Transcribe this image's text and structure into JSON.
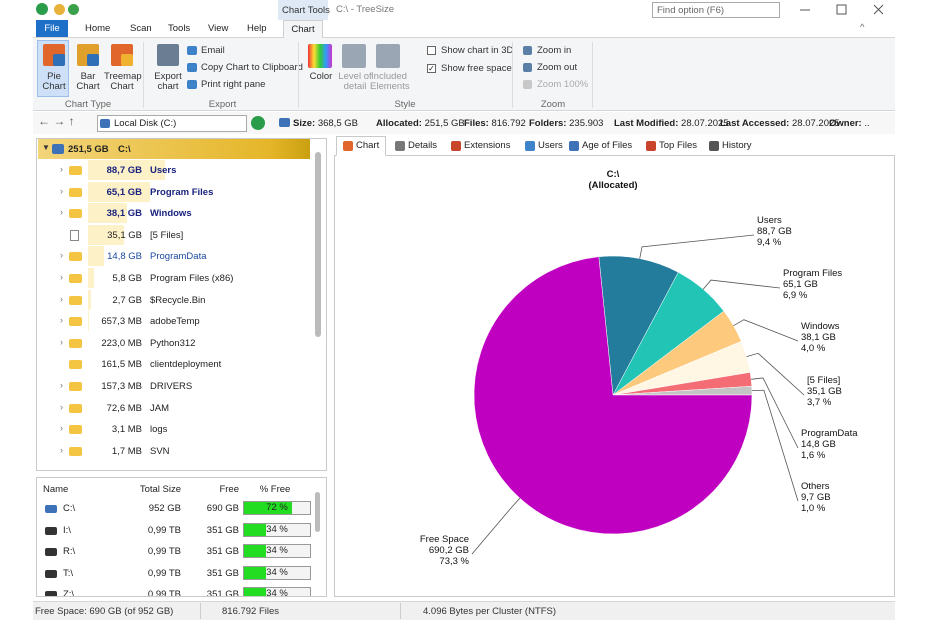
{
  "window": {
    "context_tab": "Chart Tools",
    "title": "C:\\ - TreeSize",
    "search_placeholder": "Find option (F6)"
  },
  "menu": [
    "File",
    "Home",
    "Scan",
    "Tools",
    "View",
    "Help",
    "Chart"
  ],
  "ribbon": {
    "chart_type": {
      "label": "Chart Type",
      "buttons": [
        "Pie Chart",
        "Bar Chart",
        "Treemap Chart"
      ]
    },
    "export": {
      "label": "Export",
      "button": "Export chart",
      "items": [
        "Email",
        "Copy Chart to Clipboard",
        "Print right pane"
      ]
    },
    "style": {
      "label": "Style",
      "buttons": [
        "Color",
        "Level of detail",
        "Included Elements"
      ],
      "checks": [
        {
          "text": "Show chart in 3D",
          "checked": false
        },
        {
          "text": "Show free space",
          "checked": true
        }
      ]
    },
    "zoom": {
      "label": "Zoom",
      "items": [
        "Zoom in",
        "Zoom out",
        "Zoom 100%"
      ]
    }
  },
  "address": {
    "path": "Local Disk (C:)",
    "stats": [
      {
        "label": "Size:",
        "value": "368,5 GB"
      },
      {
        "label": "Allocated:",
        "value": "251,5 GB"
      },
      {
        "label": "Files:",
        "value": "816.792"
      },
      {
        "label": "Folders:",
        "value": "235.903"
      },
      {
        "label": "Last Modified:",
        "value": "28.07.2025"
      },
      {
        "label": "Last Accessed:",
        "value": "28.07.2025"
      },
      {
        "label": "Owner:",
        "value": ".."
      }
    ]
  },
  "tree": {
    "root": {
      "size": "251,5 GB",
      "name": "C:\\"
    },
    "rows": [
      {
        "size": "88,7 GB",
        "name": "Users",
        "bold": true,
        "expandable": true,
        "icon": "folder"
      },
      {
        "size": "65,1 GB",
        "name": "Program Files",
        "bold": true,
        "expandable": true,
        "icon": "folder"
      },
      {
        "size": "38,1 GB",
        "name": "Windows",
        "bold": true,
        "expandable": true,
        "icon": "folder"
      },
      {
        "size": "35,1 GB",
        "name": "[5 Files]",
        "bold": false,
        "expandable": false,
        "icon": "file"
      },
      {
        "size": "14,8 GB",
        "name": "ProgramData",
        "bold": false,
        "expandable": true,
        "icon": "folder",
        "blue": true
      },
      {
        "size": "5,8 GB",
        "name": "Program Files (x86)",
        "bold": false,
        "expandable": true,
        "icon": "folder"
      },
      {
        "size": "2,7 GB",
        "name": "$Recycle.Bin",
        "bold": false,
        "expandable": true,
        "icon": "folder"
      },
      {
        "size": "657,3 MB",
        "name": "adobeTemp",
        "bold": false,
        "expandable": true,
        "icon": "folder"
      },
      {
        "size": "223,0 MB",
        "name": "Python312",
        "bold": false,
        "expandable": true,
        "icon": "folder"
      },
      {
        "size": "161,5 MB",
        "name": "clientdeployment",
        "bold": false,
        "expandable": false,
        "icon": "folder"
      },
      {
        "size": "157,3 MB",
        "name": "DRIVERS",
        "bold": false,
        "expandable": true,
        "icon": "folder"
      },
      {
        "size": "72,6 MB",
        "name": "JAM",
        "bold": false,
        "expandable": true,
        "icon": "folder"
      },
      {
        "size": "3,1 MB",
        "name": "logs",
        "bold": false,
        "expandable": true,
        "icon": "folder"
      },
      {
        "size": "1,7 MB",
        "name": "SVN",
        "bold": false,
        "expandable": true,
        "icon": "folder"
      }
    ]
  },
  "drives": {
    "columns": [
      "Name",
      "Total Size",
      "Free",
      "% Free"
    ],
    "rows": [
      {
        "name": "C:\\",
        "total": "952 GB",
        "free": "690 GB",
        "percent_free": 72,
        "percent_label": "72 %"
      },
      {
        "name": "I:\\",
        "total": "0,99 TB",
        "free": "351 GB",
        "percent_free": 34,
        "percent_label": "34 %"
      },
      {
        "name": "R:\\",
        "total": "0,99 TB",
        "free": "351 GB",
        "percent_free": 34,
        "percent_label": "34 %"
      },
      {
        "name": "T:\\",
        "total": "0,99 TB",
        "free": "351 GB",
        "percent_free": 34,
        "percent_label": "34 %"
      },
      {
        "name": "Z:\\",
        "total": "0,99 TB",
        "free": "351 GB",
        "percent_free": 34,
        "percent_label": "34 %"
      }
    ]
  },
  "tabs": [
    "Chart",
    "Details",
    "Extensions",
    "Users",
    "Age of Files",
    "Top Files",
    "History"
  ],
  "chart": {
    "title": "C:\\",
    "subtitle": "(Allocated)",
    "slices": [
      {
        "name": "Users",
        "size": "88,7 GB",
        "percent": 9.4,
        "percent_label": "9,4 %",
        "color": "#237c9c"
      },
      {
        "name": "Program Files",
        "size": "65,1 GB",
        "percent": 6.9,
        "percent_label": "6,9 %",
        "color": "#22c5b5"
      },
      {
        "name": "Windows",
        "size": "38,1 GB",
        "percent": 4.0,
        "percent_label": "4,0 %",
        "color": "#fdc97c"
      },
      {
        "name": "[5 Files]",
        "size": "35,1 GB",
        "percent": 3.7,
        "percent_label": "3,7 %",
        "color": "#fff6e4"
      },
      {
        "name": "ProgramData",
        "size": "14,8 GB",
        "percent": 1.6,
        "percent_label": "1,6 %",
        "color": "#f46c74"
      },
      {
        "name": "Others",
        "size": "9,7 GB",
        "percent": 1.0,
        "percent_label": "1,0 %",
        "color": "#c4c4c4"
      },
      {
        "name": "Free Space",
        "size": "690,2 GB",
        "percent": 73.3,
        "percent_label": "73,3 %",
        "color": "#c000c0"
      }
    ]
  },
  "status": [
    "Free Space: 690 GB  (of 952 GB)",
    "816.792 Files",
    "4.096 Bytes per Cluster (NTFS)"
  ]
}
